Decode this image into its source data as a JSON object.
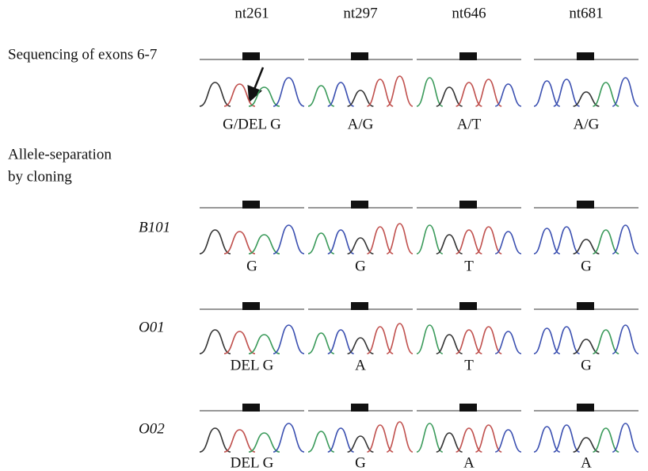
{
  "columns": [
    "nt261",
    "nt297",
    "nt646",
    "nt681"
  ],
  "direct": {
    "label": "Sequencing of exons 6-7",
    "cells": [
      "G/DEL G",
      "A/G",
      "A/T",
      "A/G"
    ]
  },
  "cloning": {
    "label_lines": [
      "Allele-separation",
      "by cloning"
    ],
    "rows": [
      {
        "sample": "B101",
        "cells": [
          "G",
          "G",
          "T",
          "G"
        ]
      },
      {
        "sample": "O01",
        "cells": [
          "DEL G",
          "A",
          "T",
          "G"
        ]
      },
      {
        "sample": "O02",
        "cells": [
          "DEL G",
          "G",
          "A",
          "A"
        ]
      }
    ]
  }
}
